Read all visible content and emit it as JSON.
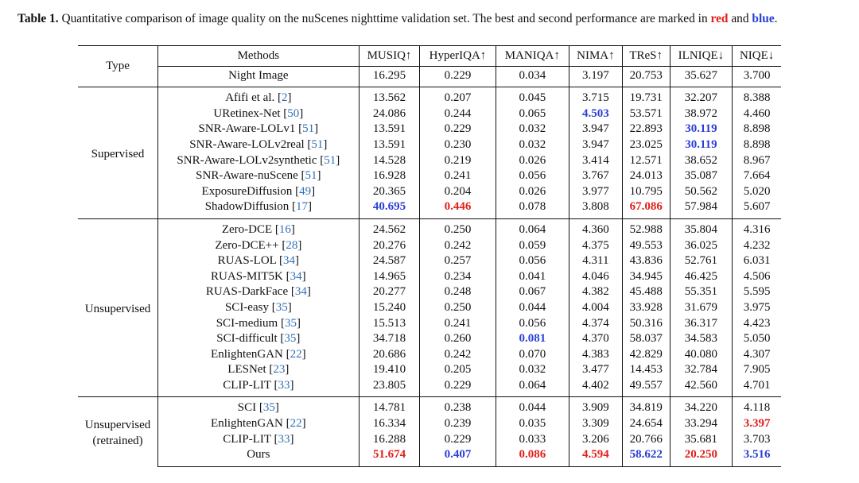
{
  "caption": {
    "label": "Table 1.",
    "text": "Quantitative comparison of image quality on the nuScenes nighttime validation set. The best and second performance are marked in",
    "red_word": "red",
    "and_word": "and",
    "blue_word": "blue",
    "end": ".",
    "colors": {
      "best": "#e0201b",
      "second": "#2b3fd6",
      "reference": "#2f6fb8"
    }
  },
  "table": {
    "type_header": "Type",
    "columns": [
      "Methods",
      "MUSIQ↑",
      "HyperIQA↑",
      "MANIQA↑",
      "NIMA↑",
      "TReS↑",
      "ILNIQE↓",
      "NIQE↓"
    ],
    "night": {
      "method": "Night Image",
      "values": [
        "16.295",
        "0.229",
        "0.034",
        "3.197",
        "20.753",
        "35.627",
        "3.700"
      ]
    },
    "groups": [
      {
        "type": "Supervised",
        "rows": [
          {
            "method": "Afifi et al. [",
            "ref": "2",
            "values": [
              "13.562",
              "0.207",
              "0.045",
              "3.715",
              "19.731",
              "32.207",
              "8.388"
            ],
            "marks": [
              "",
              "",
              "",
              "",
              "",
              "",
              ""
            ]
          },
          {
            "method": "URetinex-Net [",
            "ref": "50",
            "values": [
              "24.086",
              "0.244",
              "0.065",
              "4.503",
              "53.571",
              "38.972",
              "4.460"
            ],
            "marks": [
              "",
              "",
              "",
              "second",
              "",
              "",
              ""
            ]
          },
          {
            "method": "SNR-Aware-LOLv1 [",
            "ref": "51",
            "values": [
              "13.591",
              "0.229",
              "0.032",
              "3.947",
              "22.893",
              "30.119",
              "8.898"
            ],
            "marks": [
              "",
              "",
              "",
              "",
              "",
              "second",
              ""
            ]
          },
          {
            "method": "SNR-Aware-LOLv2real [",
            "ref": "51",
            "values": [
              "13.591",
              "0.230",
              "0.032",
              "3.947",
              "23.025",
              "30.119",
              "8.898"
            ],
            "marks": [
              "",
              "",
              "",
              "",
              "",
              "second",
              ""
            ]
          },
          {
            "method": "SNR-Aware-LOLv2synthetic [",
            "ref": "51",
            "values": [
              "14.528",
              "0.219",
              "0.026",
              "3.414",
              "12.571",
              "38.652",
              "8.967"
            ],
            "marks": [
              "",
              "",
              "",
              "",
              "",
              "",
              ""
            ]
          },
          {
            "method": "SNR-Aware-nuScene [",
            "ref": "51",
            "values": [
              "16.928",
              "0.241",
              "0.056",
              "3.767",
              "24.013",
              "35.087",
              "7.664"
            ],
            "marks": [
              "",
              "",
              "",
              "",
              "",
              "",
              ""
            ]
          },
          {
            "method": "ExposureDiffusion [",
            "ref": "49",
            "values": [
              "20.365",
              "0.204",
              "0.026",
              "3.977",
              "10.795",
              "50.562",
              "5.020"
            ],
            "marks": [
              "",
              "",
              "",
              "",
              "",
              "",
              ""
            ]
          },
          {
            "method": "ShadowDiffusion [",
            "ref": "17",
            "values": [
              "40.695",
              "0.446",
              "0.078",
              "3.808",
              "67.086",
              "57.984",
              "5.607"
            ],
            "marks": [
              "second",
              "best",
              "",
              "",
              "best",
              "",
              ""
            ]
          }
        ]
      },
      {
        "type": "Unsupervised",
        "rows": [
          {
            "method": "Zero-DCE [",
            "ref": "16",
            "values": [
              "24.562",
              "0.250",
              "0.064",
              "4.360",
              "52.988",
              "35.804",
              "4.316"
            ],
            "marks": [
              "",
              "",
              "",
              "",
              "",
              "",
              ""
            ]
          },
          {
            "method": "Zero-DCE++ [",
            "ref": "28",
            "values": [
              "20.276",
              "0.242",
              "0.059",
              "4.375",
              "49.553",
              "36.025",
              "4.232"
            ],
            "marks": [
              "",
              "",
              "",
              "",
              "",
              "",
              ""
            ]
          },
          {
            "method": "RUAS-LOL [",
            "ref": "34",
            "values": [
              "24.587",
              "0.257",
              "0.056",
              "4.311",
              "43.836",
              "52.761",
              "6.031"
            ],
            "marks": [
              "",
              "",
              "",
              "",
              "",
              "",
              ""
            ]
          },
          {
            "method": "RUAS-MIT5K [",
            "ref": "34",
            "values": [
              "14.965",
              "0.234",
              "0.041",
              "4.046",
              "34.945",
              "46.425",
              "4.506"
            ],
            "marks": [
              "",
              "",
              "",
              "",
              "",
              "",
              ""
            ]
          },
          {
            "method": "RUAS-DarkFace [",
            "ref": "34",
            "values": [
              "20.277",
              "0.248",
              "0.067",
              "4.382",
              "45.488",
              "55.351",
              "5.595"
            ],
            "marks": [
              "",
              "",
              "",
              "",
              "",
              "",
              ""
            ]
          },
          {
            "method": "SCI-easy [",
            "ref": "35",
            "values": [
              "15.240",
              "0.250",
              "0.044",
              "4.004",
              "33.928",
              "31.679",
              "3.975"
            ],
            "marks": [
              "",
              "",
              "",
              "",
              "",
              "",
              ""
            ]
          },
          {
            "method": "SCI-medium [",
            "ref": "35",
            "values": [
              "15.513",
              "0.241",
              "0.056",
              "4.374",
              "50.316",
              "36.317",
              "4.423"
            ],
            "marks": [
              "",
              "",
              "",
              "",
              "",
              "",
              ""
            ]
          },
          {
            "method": "SCI-difficult [",
            "ref": "35",
            "values": [
              "34.718",
              "0.260",
              "0.081",
              "4.370",
              "58.037",
              "34.583",
              "5.050"
            ],
            "marks": [
              "",
              "",
              "second",
              "",
              "",
              "",
              ""
            ]
          },
          {
            "method": "EnlightenGAN [",
            "ref": "22",
            "values": [
              "20.686",
              "0.242",
              "0.070",
              "4.383",
              "42.829",
              "40.080",
              "4.307"
            ],
            "marks": [
              "",
              "",
              "",
              "",
              "",
              "",
              ""
            ]
          },
          {
            "method": "LESNet [",
            "ref": "23",
            "values": [
              "19.410",
              "0.205",
              "0.032",
              "3.477",
              "14.453",
              "32.784",
              "7.905"
            ],
            "marks": [
              "",
              "",
              "",
              "",
              "",
              "",
              ""
            ]
          },
          {
            "method": "CLIP-LIT [",
            "ref": "33",
            "values": [
              "23.805",
              "0.229",
              "0.064",
              "4.402",
              "49.557",
              "42.560",
              "4.701"
            ],
            "marks": [
              "",
              "",
              "",
              "",
              "",
              "",
              ""
            ]
          }
        ]
      },
      {
        "type": "Unsupervised",
        "type2": "(retrained)",
        "rows": [
          {
            "method": "SCI [",
            "ref": "35",
            "values": [
              "14.781",
              "0.238",
              "0.044",
              "3.909",
              "34.819",
              "34.220",
              "4.118"
            ],
            "marks": [
              "",
              "",
              "",
              "",
              "",
              "",
              ""
            ]
          },
          {
            "method": "EnlightenGAN [",
            "ref": "22",
            "values": [
              "16.334",
              "0.239",
              "0.035",
              "3.309",
              "24.654",
              "33.294",
              "3.397"
            ],
            "marks": [
              "",
              "",
              "",
              "",
              "",
              "",
              "best"
            ]
          },
          {
            "method": "CLIP-LIT [",
            "ref": "33",
            "values": [
              "16.288",
              "0.229",
              "0.033",
              "3.206",
              "20.766",
              "35.681",
              "3.703"
            ],
            "marks": [
              "",
              "",
              "",
              "",
              "",
              "",
              ""
            ]
          },
          {
            "method": "Ours",
            "ref": "",
            "values": [
              "51.674",
              "0.407",
              "0.086",
              "4.594",
              "58.622",
              "20.250",
              "3.516"
            ],
            "marks": [
              "best",
              "second",
              "best",
              "best",
              "second",
              "best",
              "second"
            ]
          }
        ]
      }
    ]
  }
}
